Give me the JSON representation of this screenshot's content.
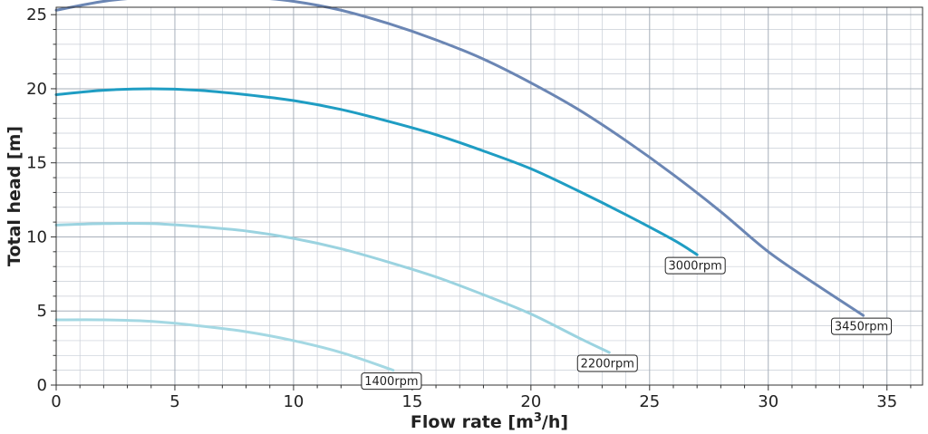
{
  "chart_data": {
    "type": "line",
    "title": "",
    "xlabel": "Flow rate [m",
    "xlabel_sup": "3",
    "xlabel_suffix": "/h]",
    "ylabel": "Total head [m]",
    "xlim": [
      0,
      36.5
    ],
    "ylim": [
      0,
      25.5
    ],
    "xticks": [
      0,
      5,
      10,
      15,
      20,
      25,
      30,
      35
    ],
    "yticks": [
      0,
      5,
      10,
      15,
      20,
      25
    ],
    "grid": true,
    "legend": "none",
    "series": [
      {
        "name": "3450rpm",
        "color": "#6b86b4",
        "width": 3,
        "x": [
          0,
          2,
          4,
          6,
          8,
          10,
          12,
          14,
          16,
          18,
          20,
          22,
          24,
          26,
          28,
          30,
          32,
          34
        ],
        "y": [
          25.3,
          25.9,
          26.2,
          26.3,
          26.2,
          25.9,
          25.3,
          24.4,
          23.3,
          22.0,
          20.4,
          18.6,
          16.5,
          14.2,
          11.7,
          9.0,
          6.8,
          4.7
        ]
      },
      {
        "name": "3000rpm",
        "color": "#1f9dc3",
        "width": 3,
        "x": [
          0,
          2,
          4,
          6,
          8,
          10,
          12,
          14,
          16,
          18,
          20,
          22,
          24,
          26,
          27
        ],
        "y": [
          19.6,
          19.9,
          20.0,
          19.9,
          19.6,
          19.2,
          18.6,
          17.8,
          16.9,
          15.8,
          14.6,
          13.1,
          11.5,
          9.8,
          8.8
        ]
      },
      {
        "name": "2200rpm",
        "color": "#9bd3e0",
        "width": 3,
        "x": [
          0,
          2,
          4,
          6,
          8,
          10,
          12,
          14,
          16,
          18,
          20,
          22,
          23.3
        ],
        "y": [
          10.8,
          10.9,
          10.9,
          10.7,
          10.4,
          9.9,
          9.2,
          8.3,
          7.3,
          6.1,
          4.8,
          3.2,
          2.2
        ]
      },
      {
        "name": "1400rpm",
        "color": "#a4d8e3",
        "width": 3,
        "x": [
          0,
          2,
          4,
          6,
          8,
          10,
          12,
          14.2
        ],
        "y": [
          4.4,
          4.4,
          4.3,
          4.0,
          3.6,
          3.0,
          2.2,
          1.0
        ]
      }
    ],
    "annotations": [
      {
        "text": "3450rpm",
        "series": "3450rpm"
      },
      {
        "text": "3000rpm",
        "series": "3000rpm"
      },
      {
        "text": "2200rpm",
        "series": "2200rpm"
      },
      {
        "text": "1400rpm",
        "series": "1400rpm"
      }
    ]
  }
}
